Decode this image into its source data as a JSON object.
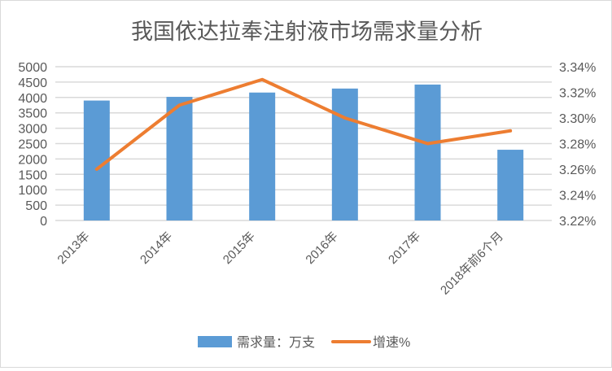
{
  "chart_data": {
    "type": "bar+line",
    "title": "我国依达拉奉注射液市场需求量分析",
    "categories": [
      "2013年",
      "2014年",
      "2015年",
      "2016年",
      "2017年",
      "2018年前6个月"
    ],
    "series": [
      {
        "name": "需求量：万支",
        "type": "bar",
        "axis": "left",
        "color": "#5b9bd5",
        "values": [
          3900,
          4020,
          4160,
          4290,
          4420,
          2300
        ]
      },
      {
        "name": "增速%",
        "type": "line",
        "axis": "right",
        "color": "#ed7d31",
        "values": [
          3.26,
          3.31,
          3.33,
          3.3,
          3.28,
          3.29
        ]
      }
    ],
    "y_left": {
      "ylim": [
        0,
        5000
      ],
      "ticks": [
        0,
        500,
        1000,
        1500,
        2000,
        2500,
        3000,
        3500,
        4000,
        4500,
        5000
      ],
      "tick_labels": [
        "0",
        "500",
        "1000",
        "1500",
        "2000",
        "2500",
        "3000",
        "3500",
        "4000",
        "4500",
        "5000"
      ]
    },
    "y_right": {
      "ylim": [
        3.22,
        3.34
      ],
      "ticks": [
        3.22,
        3.24,
        3.26,
        3.28,
        3.3,
        3.32,
        3.34
      ],
      "tick_labels": [
        "3.22%",
        "3.24%",
        "3.26%",
        "3.28%",
        "3.30%",
        "3.32%",
        "3.34%"
      ]
    },
    "grid": true,
    "legend_position": "bottom",
    "gridline_color": "#d9d9d9"
  }
}
